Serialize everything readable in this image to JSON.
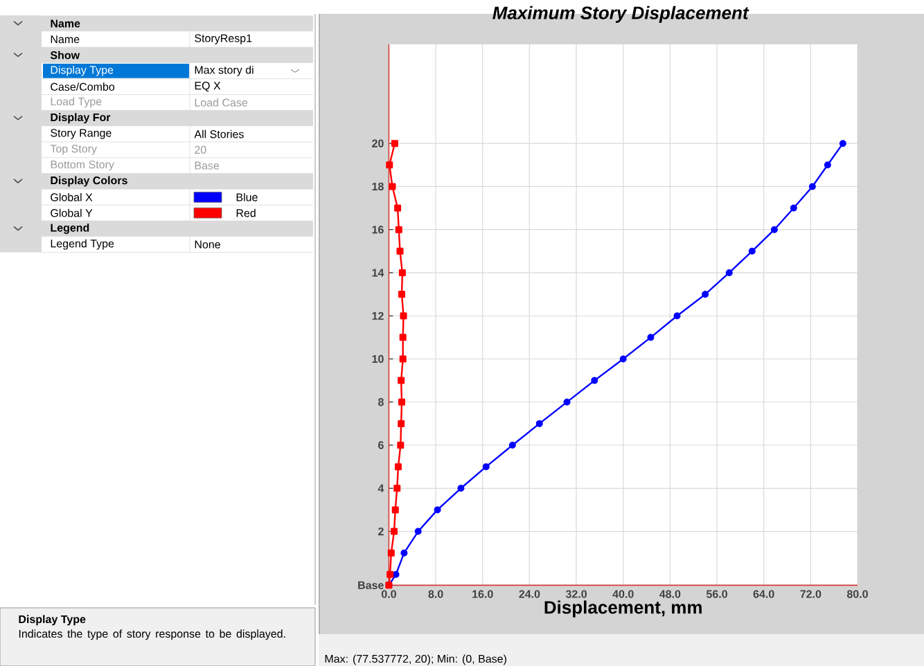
{
  "chart_data": [
    {
      "type": "other",
      "annotations": [
        "Name",
        "Name",
        "StoryResp1",
        "Show",
        "Display Type",
        "Max story di",
        "Case/Combo",
        "EQ X",
        "Load Type",
        "Load Case",
        "Display For",
        "Story Range",
        "All Stories",
        "Top Story",
        "20",
        "Bottom Story",
        "Base",
        "Display Colors",
        "Global X",
        "Blue",
        "Global Y",
        "Red",
        "Legend",
        "Legend Type",
        "None",
        "Display Type",
        "Indicates the type of story response to be displayed."
      ]
    },
    {
      "type": "line",
      "title": "Maximum Story Displacement",
      "xlabel": "Displacement, mm",
      "xlim": [
        0,
        80
      ],
      "ylim": [
        -0.5,
        24.6
      ],
      "xticks": [
        {
          "value": 0,
          "label": "0.0"
        },
        {
          "value": 8,
          "label": "8.0"
        },
        {
          "value": 16,
          "label": "16.0"
        },
        {
          "value": 24,
          "label": "24.0"
        },
        {
          "value": 32,
          "label": "32.0"
        },
        {
          "value": 40,
          "label": "40.0"
        },
        {
          "value": 48,
          "label": "48.0"
        },
        {
          "value": 56,
          "label": "56.0"
        },
        {
          "value": 64,
          "label": "64.0"
        },
        {
          "value": 72,
          "label": "72.0"
        },
        {
          "value": 80,
          "label": "80.0"
        }
      ],
      "yticks": [
        {
          "value": -0.5,
          "label": "Base"
        },
        2,
        4,
        6,
        8,
        10,
        12,
        14,
        16,
        18,
        20
      ],
      "grid": true,
      "line_style": "solid",
      "series": [
        {
          "color": "#0000ff",
          "marker": "circle",
          "x": [
            0,
            1.2,
            2.6,
            5.0,
            8.3,
            12.3,
            16.6,
            21.1,
            25.7,
            30.4,
            35.1,
            40.0,
            44.7,
            49.2,
            54.0,
            58.1,
            62.0,
            65.8,
            69.1,
            72.3,
            74.9,
            77.5
          ],
          "values": [
            -0.5,
            0,
            1,
            2,
            3,
            4,
            5,
            6,
            7,
            8,
            9,
            10,
            11,
            12,
            13,
            14,
            15,
            16,
            17,
            18,
            19,
            20
          ]
        },
        {
          "color": "#ff0000",
          "marker": "square",
          "x": [
            0,
            0.2,
            0.4,
            0.9,
            1.1,
            1.4,
            1.6,
            2.0,
            2.1,
            2.2,
            2.1,
            2.4,
            2.4,
            2.5,
            2.2,
            2.3,
            1.9,
            1.7,
            1.5,
            0.6,
            0.1,
            1.0
          ],
          "values": [
            -0.5,
            0,
            1,
            2,
            3,
            4,
            5,
            6,
            7,
            8,
            9,
            10,
            11,
            12,
            13,
            14,
            15,
            16,
            17,
            18,
            19,
            20
          ]
        }
      ],
      "annotations": [
        "Max: (77.537772, 20);   Min: (0, Base)"
      ]
    }
  ]
}
